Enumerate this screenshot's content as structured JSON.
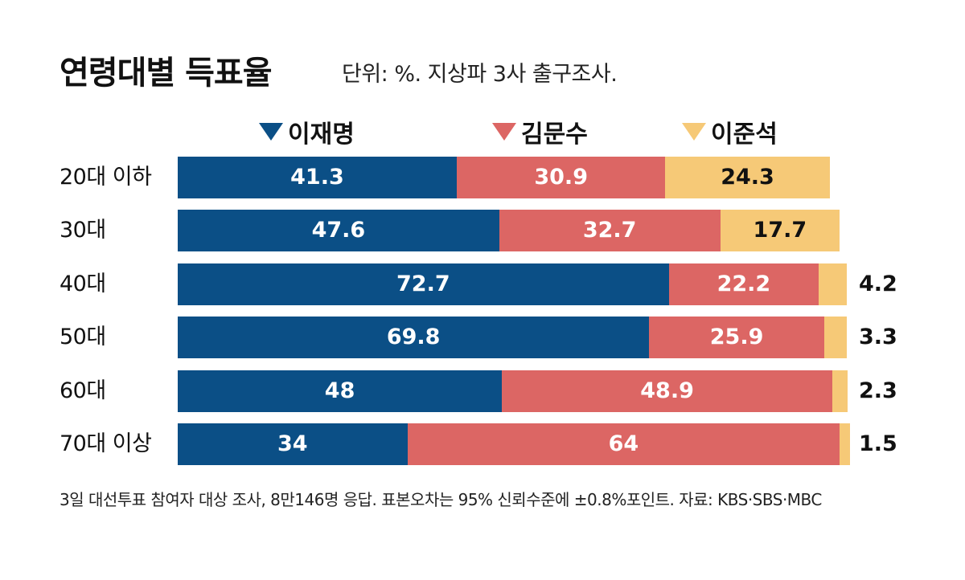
{
  "chart_data": {
    "type": "bar",
    "orientation": "horizontal",
    "stacked": true,
    "title": "연령대별 득표율",
    "subtitle": "단위: %. 지상파 3사 출구조사.",
    "categories": [
      "20대 이하",
      "30대",
      "40대",
      "50대",
      "60대",
      "70대 이상"
    ],
    "series": [
      {
        "name": "이재명",
        "color": "#0b4f86",
        "values": [
          41.3,
          47.6,
          72.7,
          69.8,
          48,
          34
        ]
      },
      {
        "name": "김문수",
        "color": "#dc6664",
        "values": [
          30.9,
          32.7,
          22.2,
          25.9,
          48.9,
          64
        ]
      },
      {
        "name": "이준석",
        "color": "#f6c977",
        "values": [
          24.3,
          17.7,
          4.2,
          3.3,
          2.3,
          1.5
        ]
      }
    ],
    "xlim": [
      0,
      100
    ],
    "grid": false,
    "legend_position": "top",
    "footnote": "3일 대선투표 참여자 대상 조사, 8만146명 응답. 표본오차는 95% 신뢰수준에 ±0.8%포인트. 자료: KBS·SBS·MBC"
  }
}
